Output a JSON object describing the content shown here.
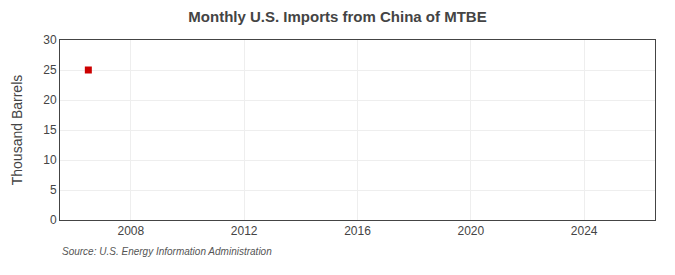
{
  "chart_data": {
    "type": "scatter",
    "title": "Monthly U.S. Imports from China of MTBE",
    "ylabel": "Thousand Barrels",
    "annotations": [
      "Source: U.S. Energy Information Administration"
    ],
    "x": [
      2006.5
    ],
    "values": [
      25
    ],
    "color": "#cc0000",
    "marker": "square",
    "xlim": [
      2005.5,
      2026.5
    ],
    "xticks": [
      2008,
      2012,
      2016,
      2020,
      2024
    ],
    "ylim": [
      0,
      30
    ],
    "yticks": [
      0,
      5,
      10,
      15,
      20,
      25,
      30
    ],
    "grid": true
  }
}
